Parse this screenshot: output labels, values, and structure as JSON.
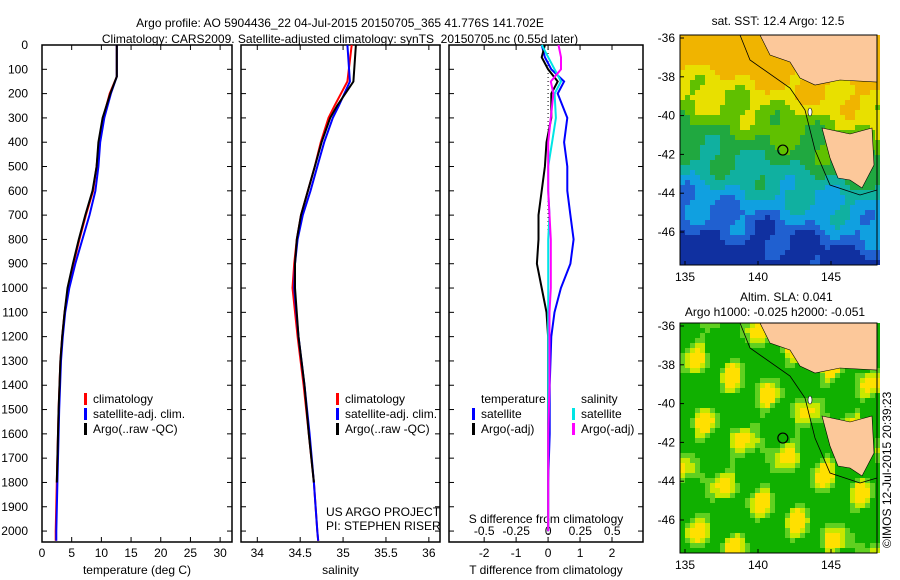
{
  "title_line1": "Argo profile: AO 5904436_22 04-Jul-2015 20150705_365 41.776S 141.702E",
  "title_line2": "Climatology: CARS2009. Satellite-adjusted climatology: synTS_20150705.nc (0.55d later)",
  "credit": "©IMOS 12-Jul-2015 20:39:23",
  "project": [
    "US ARGO PROJECT",
    "PI: STEPHEN RISER"
  ],
  "colors": {
    "climatology": "#ff0000",
    "satellite": "#0000ff",
    "argo": "#000000",
    "sal_satellite": "#00e5e5",
    "sal_argo": "#ff00ff",
    "land": "#fcc89a"
  },
  "chart_data": [
    {
      "type": "line",
      "name": "temperature",
      "xlabel": "temperature (deg C)",
      "ylabel": "depth",
      "xlim": [
        0,
        32
      ],
      "ylim": [
        2045,
        0
      ],
      "xticks": [
        0,
        5,
        10,
        15,
        20,
        25,
        30
      ],
      "yticks": [
        0,
        100,
        200,
        300,
        400,
        500,
        600,
        700,
        800,
        900,
        1000,
        1100,
        1200,
        1300,
        1400,
        1500,
        1600,
        1700,
        1800,
        1900,
        2000
      ],
      "legend": [
        "climatology",
        "satellite-adj. clim.",
        "Argo(..raw -QC)"
      ],
      "depth": [
        0,
        130,
        200,
        300,
        400,
        500,
        600,
        700,
        800,
        900,
        1000,
        1100,
        1200,
        1300,
        1500,
        1800,
        2000,
        2040
      ],
      "series": [
        {
          "name": "climatology",
          "color": "#ff0000",
          "values": [
            12.6,
            12.6,
            11.4,
            10.3,
            9.6,
            9.2,
            8.6,
            7.4,
            6.3,
            5.3,
            4.4,
            3.8,
            3.4,
            3.1,
            2.8,
            2.5,
            2.3,
            2.3
          ]
        },
        {
          "name": "satellite-adj. clim.",
          "color": "#0000ff",
          "values": [
            12.6,
            12.6,
            11.6,
            10.5,
            9.8,
            9.5,
            9.0,
            8.0,
            6.8,
            5.6,
            4.6,
            3.9,
            3.5,
            3.2,
            2.9,
            2.6,
            2.4,
            2.4
          ]
        },
        {
          "name": "Argo(..raw -QC)",
          "color": "#000000",
          "values": [
            12.6,
            12.6,
            11.5,
            10.2,
            9.5,
            9.2,
            8.5,
            7.3,
            6.2,
            5.2,
            4.3,
            3.8,
            3.4,
            3.1,
            2.8,
            2.5
          ]
        }
      ]
    },
    {
      "type": "line",
      "name": "salinity",
      "xlabel": "salinity",
      "xlim": [
        33.81,
        36.13
      ],
      "ylim": [
        2045,
        0
      ],
      "xticks": [
        34,
        34.5,
        35,
        35.5,
        36
      ],
      "legend": [
        "climatology",
        "satellite-adj. clim.",
        "Argo(..raw -QC)"
      ],
      "depth": [
        0,
        150,
        250,
        300,
        400,
        500,
        600,
        700,
        800,
        900,
        1000,
        1200,
        1400,
        1600,
        1800,
        2000,
        2040
      ],
      "series": [
        {
          "name": "climatology",
          "color": "#ff0000",
          "values": [
            35.1,
            35.05,
            34.9,
            34.83,
            34.74,
            34.67,
            34.59,
            34.51,
            34.46,
            34.43,
            34.41,
            34.47,
            34.54,
            34.6,
            34.66,
            34.7,
            34.71
          ]
        },
        {
          "name": "satellite-adj. clim.",
          "color": "#0000ff",
          "values": [
            35.05,
            35.08,
            34.95,
            34.88,
            34.78,
            34.7,
            34.62,
            34.53,
            34.47,
            34.44,
            34.43,
            34.48,
            34.55,
            34.61,
            34.66,
            34.7,
            34.71
          ]
        },
        {
          "name": "Argo(..raw -QC)",
          "color": "#000000",
          "values": [
            35.15,
            35.12,
            34.93,
            34.85,
            34.75,
            34.67,
            34.59,
            34.51,
            34.46,
            34.44,
            34.44,
            34.48,
            34.55,
            34.6,
            34.66
          ]
        }
      ]
    },
    {
      "type": "line",
      "name": "differences",
      "xlabel": "T difference from climatology",
      "x2label": "S difference from climatology",
      "xlim": [
        -3.1,
        2.97
      ],
      "x2lim": [
        -0.775,
        0.74
      ],
      "ylim": [
        2045,
        0
      ],
      "xticks": [
        -2,
        -1,
        0,
        1,
        2
      ],
      "x2ticks": [
        -0.5,
        -0.25,
        0,
        0.25,
        0.5
      ],
      "legend_temperature_title": "temperature",
      "legend_salinity_title": "salinity",
      "legend_temperature": [
        "satellite",
        "Argo(-adj)"
      ],
      "legend_salinity": [
        "satellite",
        "Argo(-adj)"
      ],
      "depth": [
        0,
        50,
        100,
        150,
        200,
        300,
        400,
        500,
        600,
        700,
        800,
        900,
        1000,
        1100,
        1200,
        1400,
        1600,
        1800,
        2000
      ],
      "series": [
        {
          "name": "T satellite",
          "color": "#0000ff",
          "axis": "T",
          "values": [
            -0.2,
            -0.1,
            0.1,
            0.5,
            0.3,
            0.6,
            0.5,
            0.6,
            0.6,
            0.7,
            0.8,
            0.7,
            0.4,
            0.2,
            0.1,
            0.05,
            0.05,
            0.0,
            0.0
          ]
        },
        {
          "name": "T Argo(-adj)",
          "color": "#000000",
          "axis": "T",
          "values": [
            -0.1,
            -0.2,
            0.0,
            0.3,
            0.1,
            0.1,
            -0.05,
            -0.1,
            -0.2,
            -0.3,
            -0.3,
            -0.35,
            -0.2,
            -0.05,
            0.0,
            0.0,
            0.0,
            0.0,
            0.0
          ]
        },
        {
          "name": "S satellite",
          "color": "#00e5e5",
          "axis": "S",
          "values": [
            -0.05,
            0.0,
            0.05,
            0.1,
            0.05,
            0.06,
            0.03,
            0.0,
            0.0,
            0.01,
            0.0,
            0.0,
            0.0,
            0.0,
            0.0,
            0.0,
            0.0,
            0.0,
            0.0
          ]
        },
        {
          "name": "S Argo(-adj)",
          "color": "#ff00ff",
          "axis": "S",
          "values": [
            0.08,
            0.1,
            0.1,
            0.02,
            0.04,
            0.02,
            0.0,
            0.0,
            0.0,
            0.01,
            0.02,
            0.02,
            0.02,
            0.01,
            0.01,
            0.01,
            0.0,
            0.0,
            0.0
          ]
        }
      ]
    }
  ],
  "maps": [
    {
      "name": "sst-map",
      "title": "sat. SST: 12.4 Argo: 12.5",
      "lon_ticks": [
        135,
        140,
        145
      ],
      "lat_ticks": [
        -36,
        -38,
        -40,
        -42,
        -44,
        -46
      ],
      "float_lon": 141.702,
      "float_lat": -41.776
    },
    {
      "name": "sla-map",
      "title": "Altim. SLA: 0.041",
      "subtitle": "Argo h1000: -0.025 h2000: -0.051",
      "lon_ticks": [
        135,
        140,
        145
      ],
      "lat_ticks": [
        -36,
        -38,
        -40,
        -42,
        -44,
        -46
      ],
      "float_lon": 141.702,
      "float_lat": -41.776
    }
  ]
}
